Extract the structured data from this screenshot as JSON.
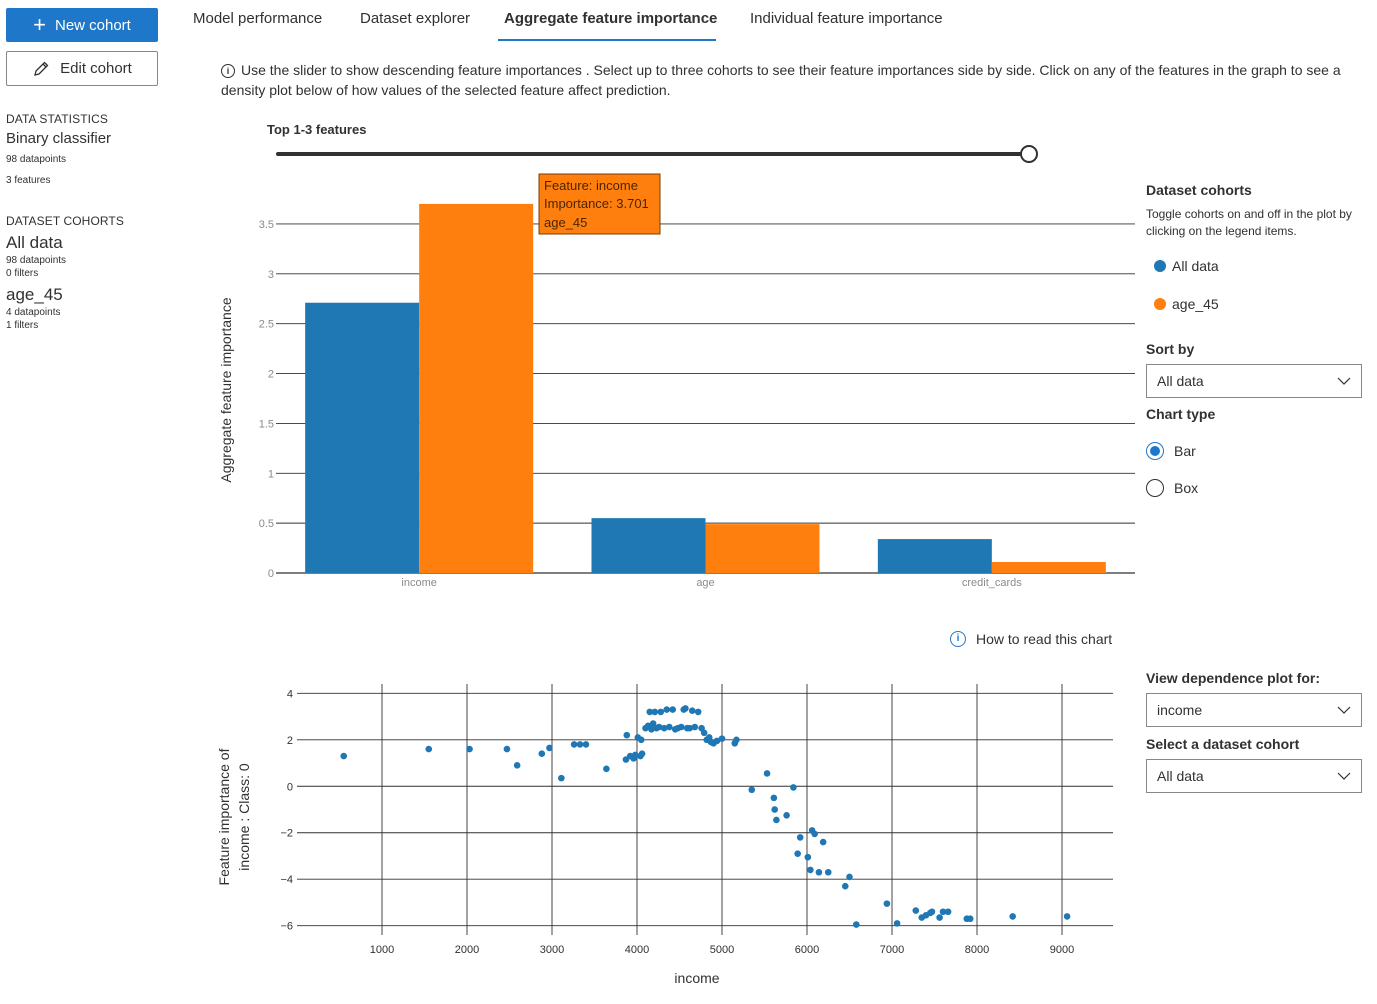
{
  "sidebar": {
    "new_cohort_label": "New cohort",
    "edit_cohort_label": "Edit cohort",
    "data_statistics_heading": "DATA STATISTICS",
    "classifier_type": "Binary classifier",
    "datapoints": "98 datapoints",
    "features": "3 features",
    "dataset_cohorts_heading": "DATASET COHORTS",
    "cohorts": [
      {
        "name": "All data",
        "datapoints": "98 datapoints",
        "filters": "0 filters"
      },
      {
        "name": "age_45",
        "datapoints": "4 datapoints",
        "filters": "1 filters"
      }
    ]
  },
  "tabs": [
    {
      "label": "Model performance",
      "active": false
    },
    {
      "label": "Dataset explorer",
      "active": false
    },
    {
      "label": "Aggregate feature importance",
      "active": true
    },
    {
      "label": "Individual feature importance",
      "active": false
    }
  ],
  "info_text": "Use the slider to show descending feature importances . Select up to three cohorts to see their feature importances side by side. Click on any of the features in the graph to see a density plot below of how values of the selected feature affect prediction.",
  "slider": {
    "label": "Top 1-3 features",
    "value": 3,
    "max": 3
  },
  "right_panel": {
    "dataset_cohorts_title": "Dataset cohorts",
    "dataset_cohorts_help": "Toggle cohorts on and off in the plot by clicking on the legend items.",
    "legend": [
      {
        "name": "All data",
        "color": "#1f77b4"
      },
      {
        "name": "age_45",
        "color": "#ff7f0e"
      }
    ],
    "sort_by_label": "Sort by",
    "sort_by_value": "All data",
    "chart_type_label": "Chart type",
    "chart_type_options": [
      {
        "label": "Bar",
        "selected": true
      },
      {
        "label": "Box",
        "selected": false
      }
    ],
    "view_dependence_label": "View dependence plot for:",
    "view_dependence_value": "income",
    "select_cohort_label": "Select a dataset cohort",
    "select_cohort_value": "All data"
  },
  "how_to_read": "How to read this chart",
  "chart_data": [
    {
      "type": "bar",
      "ylabel": "Aggregate feature importance",
      "categories": [
        "income",
        "age",
        "credit_cards"
      ],
      "series": [
        {
          "name": "All data",
          "color": "#1f77b4",
          "values": [
            2.71,
            0.55,
            0.34
          ]
        },
        {
          "name": "age_45",
          "color": "#ff7f0e",
          "values": [
            3.701,
            0.49,
            0.11
          ]
        }
      ],
      "ylim": [
        0,
        3.7
      ],
      "yticks": [
        0,
        0.5,
        1,
        1.5,
        2,
        2.5,
        3,
        3.5
      ],
      "tooltip": {
        "line1": "Feature: income",
        "line2": "Importance: 3.701",
        "line3": "age_45"
      }
    },
    {
      "type": "scatter",
      "xlabel": "income",
      "ylabel_line1": "Feature importance of",
      "ylabel_line2": "income : Class: 0",
      "xlim": [
        0,
        9600
      ],
      "ylim": [
        -6.4,
        4.4
      ],
      "xticks": [
        1000,
        2000,
        3000,
        4000,
        5000,
        6000,
        7000,
        8000,
        9000
      ],
      "yticks": [
        -6,
        -4,
        -2,
        0,
        2,
        4
      ],
      "color": "#1f77b4",
      "points": [
        [
          550,
          1.3
        ],
        [
          1550,
          1.6
        ],
        [
          2030,
          1.6
        ],
        [
          2470,
          1.6
        ],
        [
          2590,
          0.9
        ],
        [
          2880,
          1.4
        ],
        [
          2970,
          1.65
        ],
        [
          3110,
          0.35
        ],
        [
          3260,
          1.8
        ],
        [
          3330,
          1.8
        ],
        [
          3400,
          1.8
        ],
        [
          3640,
          0.75
        ],
        [
          3870,
          1.15
        ],
        [
          3880,
          2.2
        ],
        [
          3920,
          1.3
        ],
        [
          3960,
          1.2
        ],
        [
          3980,
          1.35
        ],
        [
          4010,
          2.1
        ],
        [
          4040,
          1.3
        ],
        [
          4050,
          2.0
        ],
        [
          4060,
          1.4
        ],
        [
          4100,
          2.5
        ],
        [
          4130,
          2.6
        ],
        [
          4150,
          3.2
        ],
        [
          4170,
          2.45
        ],
        [
          4190,
          2.7
        ],
        [
          4210,
          3.2
        ],
        [
          4230,
          2.5
        ],
        [
          4260,
          2.55
        ],
        [
          4280,
          3.2
        ],
        [
          4320,
          2.5
        ],
        [
          4350,
          3.3
        ],
        [
          4380,
          2.55
        ],
        [
          4420,
          3.3
        ],
        [
          4450,
          2.45
        ],
        [
          4480,
          2.5
        ],
        [
          4520,
          2.55
        ],
        [
          4550,
          3.3
        ],
        [
          4570,
          3.35
        ],
        [
          4590,
          2.5
        ],
        [
          4620,
          2.5
        ],
        [
          4650,
          3.25
        ],
        [
          4680,
          2.55
        ],
        [
          4720,
          3.2
        ],
        [
          4760,
          2.5
        ],
        [
          4790,
          2.3
        ],
        [
          4820,
          2.0
        ],
        [
          4850,
          2.1
        ],
        [
          4870,
          1.9
        ],
        [
          4900,
          1.85
        ],
        [
          4940,
          1.95
        ],
        [
          5000,
          2.05
        ],
        [
          5150,
          1.85
        ],
        [
          5170,
          2.0
        ],
        [
          5350,
          -0.15
        ],
        [
          5530,
          0.55
        ],
        [
          5610,
          -0.5
        ],
        [
          5620,
          -1.0
        ],
        [
          5640,
          -1.45
        ],
        [
          5760,
          -1.25
        ],
        [
          5840,
          -0.05
        ],
        [
          5890,
          -2.9
        ],
        [
          5920,
          -2.2
        ],
        [
          6010,
          -3.05
        ],
        [
          6040,
          -3.6
        ],
        [
          6060,
          -1.9
        ],
        [
          6090,
          -2.05
        ],
        [
          6140,
          -3.7
        ],
        [
          6190,
          -2.4
        ],
        [
          6250,
          -3.7
        ],
        [
          6450,
          -4.3
        ],
        [
          6500,
          -3.9
        ],
        [
          6580,
          -5.95
        ],
        [
          6940,
          -5.05
        ],
        [
          7060,
          -5.9
        ],
        [
          7280,
          -5.35
        ],
        [
          7350,
          -5.65
        ],
        [
          7400,
          -5.55
        ],
        [
          7450,
          -5.45
        ],
        [
          7470,
          -5.4
        ],
        [
          7560,
          -5.65
        ],
        [
          7600,
          -5.4
        ],
        [
          7660,
          -5.4
        ],
        [
          7880,
          -5.7
        ],
        [
          7920,
          -5.7
        ],
        [
          8420,
          -5.6
        ],
        [
          9060,
          -5.6
        ]
      ]
    }
  ]
}
